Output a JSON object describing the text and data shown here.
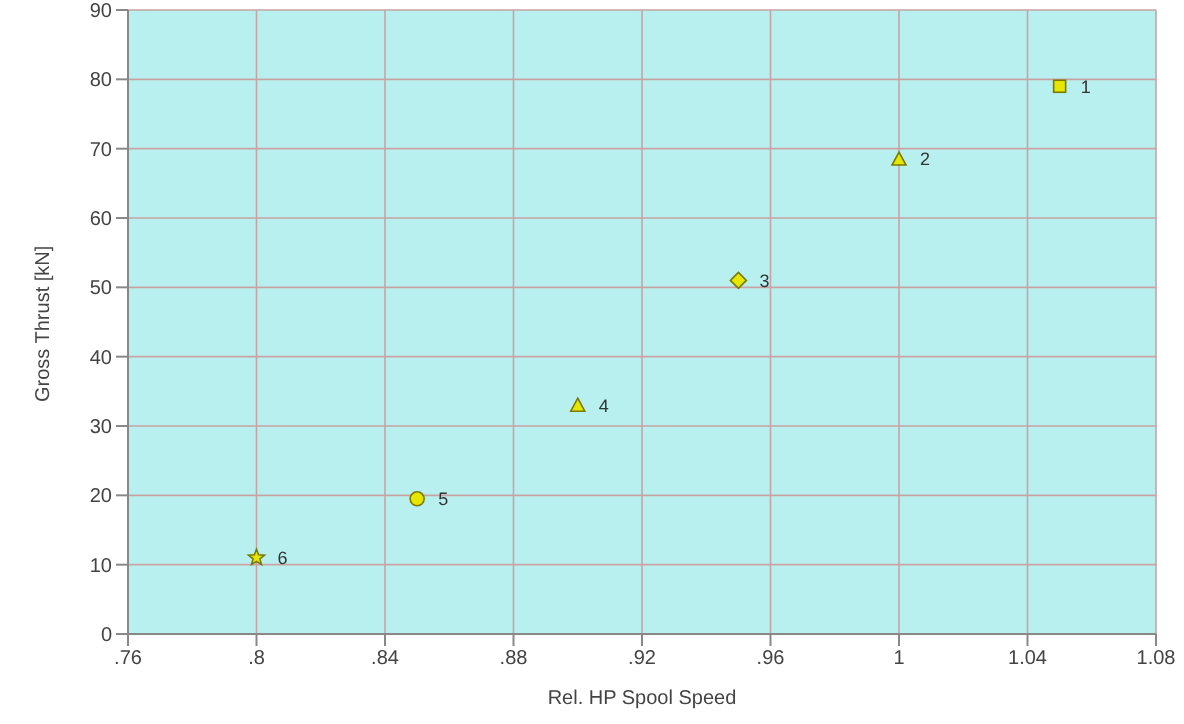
{
  "chart_data": {
    "type": "scatter",
    "xlabel": "Rel. HP Spool Speed",
    "ylabel": "Gross Thrust [kN]",
    "xlim": [
      0.76,
      1.08
    ],
    "xticks": [
      {
        "value": 0.76,
        "label": ".76"
      },
      {
        "value": 0.8,
        "label": ".8"
      },
      {
        "value": 0.84,
        "label": ".84"
      },
      {
        "value": 0.88,
        "label": ".88"
      },
      {
        "value": 0.92,
        "label": ".92"
      },
      {
        "value": 0.96,
        "label": ".96"
      },
      1,
      1.04,
      1.08
    ],
    "ylim": [
      0,
      90
    ],
    "yticks": [
      0,
      10,
      20,
      30,
      40,
      50,
      60,
      70,
      80,
      90
    ],
    "grid": true,
    "series": [
      {
        "name": "1",
        "color": "#e6e600",
        "marker": "square",
        "x": [
          1.05
        ],
        "values": [
          79
        ]
      },
      {
        "name": "2",
        "color": "#e6e600",
        "marker": "triangle",
        "x": [
          1.0
        ],
        "values": [
          68.5
        ]
      },
      {
        "name": "3",
        "color": "#e6e600",
        "marker": "diamond",
        "x": [
          0.95
        ],
        "values": [
          51
        ]
      },
      {
        "name": "4",
        "color": "#e6e600",
        "marker": "triangle",
        "x": [
          0.9
        ],
        "values": [
          33
        ]
      },
      {
        "name": "5",
        "color": "#e6e600",
        "marker": "circle",
        "x": [
          0.85
        ],
        "values": [
          19.5
        ]
      },
      {
        "name": "6",
        "color": "#e6e600",
        "marker": "star",
        "x": [
          0.8
        ],
        "values": [
          11
        ]
      }
    ]
  }
}
